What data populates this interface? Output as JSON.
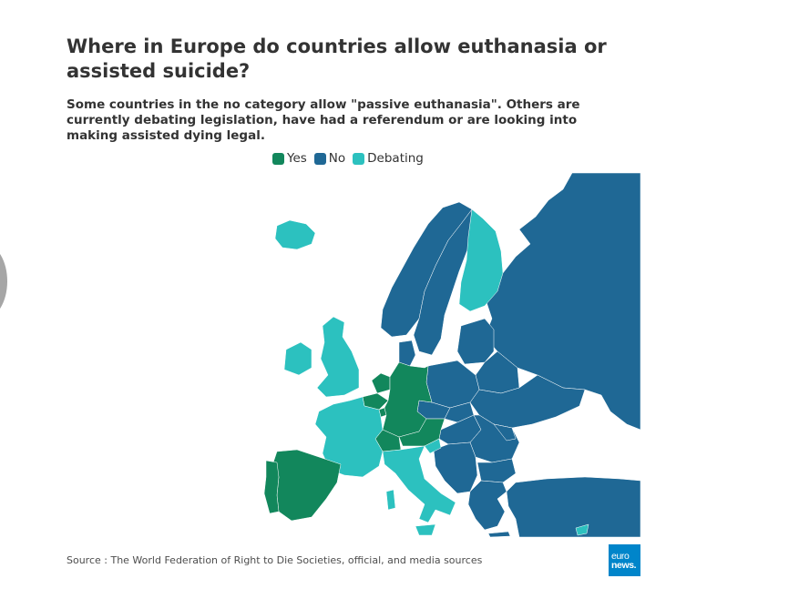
{
  "title": "Where in Europe do countries allow euthanasia or assisted suicide?",
  "subtitle": "Some countries in the no category allow \"passive euthanasia\". Others are currently debating legislation, have had a referendum or are looking into making assisted dying legal.",
  "legend": [
    {
      "label": "Yes",
      "color": "#12875c"
    },
    {
      "label": "No",
      "color": "#1f6895"
    },
    {
      "label": "Debating",
      "color": "#2cc1bf"
    }
  ],
  "colors": {
    "yes": "#12875c",
    "no": "#1f6895",
    "debating": "#2cc1bf"
  },
  "regions": [
    {
      "name": "Iceland",
      "status": "debating"
    },
    {
      "name": "Ireland",
      "status": "debating"
    },
    {
      "name": "United Kingdom",
      "status": "debating"
    },
    {
      "name": "Norway",
      "status": "no"
    },
    {
      "name": "Sweden",
      "status": "no"
    },
    {
      "name": "Finland",
      "status": "debating"
    },
    {
      "name": "Russia",
      "status": "no"
    },
    {
      "name": "Baltic states",
      "status": "no"
    },
    {
      "name": "Denmark",
      "status": "no"
    },
    {
      "name": "Poland",
      "status": "no"
    },
    {
      "name": "Belarus",
      "status": "no"
    },
    {
      "name": "Ukraine",
      "status": "no"
    },
    {
      "name": "Netherlands",
      "status": "yes"
    },
    {
      "name": "Belgium",
      "status": "yes"
    },
    {
      "name": "Luxembourg",
      "status": "yes"
    },
    {
      "name": "Germany",
      "status": "yes"
    },
    {
      "name": "Austria",
      "status": "yes"
    },
    {
      "name": "Switzerland",
      "status": "yes"
    },
    {
      "name": "France",
      "status": "debating"
    },
    {
      "name": "Spain",
      "status": "yes"
    },
    {
      "name": "Portugal",
      "status": "yes"
    },
    {
      "name": "Italy",
      "status": "debating"
    },
    {
      "name": "Slovenia",
      "status": "debating"
    },
    {
      "name": "Czechia",
      "status": "no"
    },
    {
      "name": "Slovakia",
      "status": "no"
    },
    {
      "name": "Hungary",
      "status": "no"
    },
    {
      "name": "Romania",
      "status": "no"
    },
    {
      "name": "Moldova",
      "status": "no"
    },
    {
      "name": "Western Balkans",
      "status": "no"
    },
    {
      "name": "Bulgaria",
      "status": "no"
    },
    {
      "name": "Greece",
      "status": "no"
    },
    {
      "name": "Turkey",
      "status": "no"
    },
    {
      "name": "Cyprus",
      "status": "debating"
    }
  ],
  "source": "Source : The World Federation of Right to Die Societies, official, and media sources",
  "logo": {
    "line1": "euro",
    "line2": "news."
  }
}
